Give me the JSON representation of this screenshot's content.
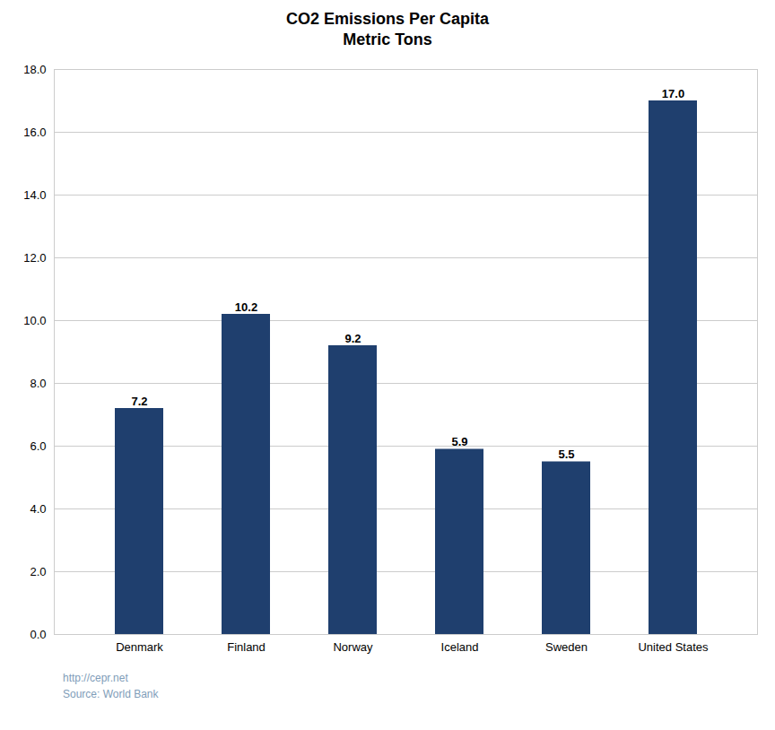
{
  "chart_data": {
    "type": "bar",
    "title": "CO2 Emissions  Per Capita\nMetric Tons",
    "caption": "http://cepr.net\nSource: World Bank",
    "categories": [
      "Denmark",
      "Finland",
      "Norway",
      "Iceland",
      "Sweden",
      "United States"
    ],
    "values": [
      7.2,
      10.2,
      9.2,
      5.9,
      5.5,
      17.0
    ],
    "value_labels": [
      "7.2",
      "10.2",
      "9.2",
      "5.9",
      "5.5",
      "17.0"
    ],
    "data_labels": true,
    "color": "#1F3F6E",
    "ylim": [
      0,
      18.0
    ],
    "yticks": [
      {
        "value": 0.0,
        "label": "0.0"
      },
      {
        "value": 2.0,
        "label": "2.0"
      },
      {
        "value": 4.0,
        "label": "4.0"
      },
      {
        "value": 6.0,
        "label": "6.0"
      },
      {
        "value": 8.0,
        "label": "8.0"
      },
      {
        "value": 10.0,
        "label": "10.0"
      },
      {
        "value": 12.0,
        "label": "12.0"
      },
      {
        "value": 14.0,
        "label": "14.0"
      },
      {
        "value": 16.0,
        "label": "16.0"
      },
      {
        "value": 18.0,
        "label": "18.0"
      }
    ],
    "grid": true
  }
}
